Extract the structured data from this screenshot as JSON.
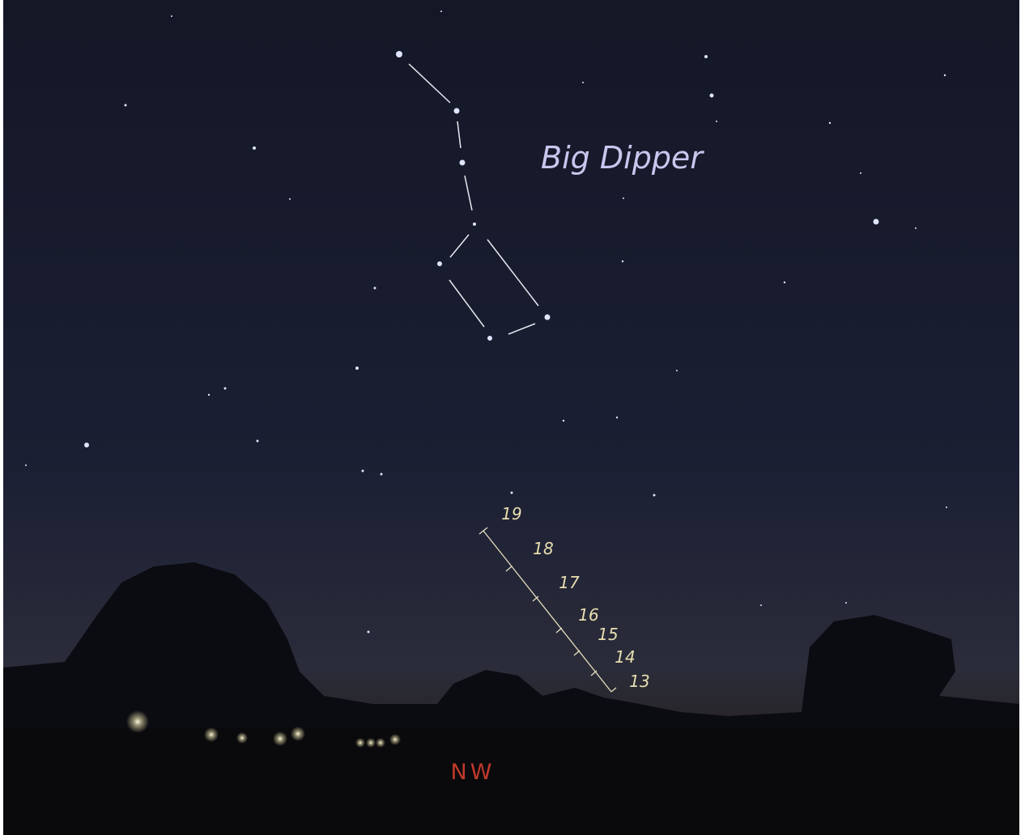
{
  "sky": {
    "constellation_label": "Big Dipper",
    "direction": "NW",
    "track_labels": [
      "19",
      "18",
      "17",
      "16",
      "15",
      "14",
      "13"
    ]
  }
}
